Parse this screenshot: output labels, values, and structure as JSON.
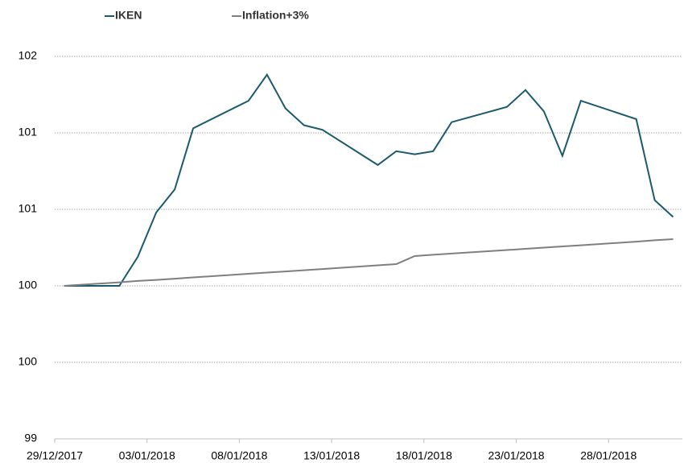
{
  "chart_data": {
    "type": "line",
    "x": [
      "29/12/2017",
      "01/01/2018",
      "02/01/2018",
      "03/01/2018",
      "04/01/2018",
      "05/01/2018",
      "08/01/2018",
      "09/01/2018",
      "10/01/2018",
      "11/01/2018",
      "12/01/2018",
      "15/01/2018",
      "16/01/2018",
      "17/01/2018",
      "18/01/2018",
      "19/01/2018",
      "22/01/2018",
      "23/01/2018",
      "24/01/2018",
      "25/01/2018",
      "26/01/2018",
      "29/01/2018",
      "30/01/2018",
      "31/01/2018"
    ],
    "series": [
      {
        "name": "IKEN",
        "color": "#1b5a6e",
        "values": [
          100,
          100,
          100.19,
          100.48,
          100.63,
          101.03,
          101.21,
          101.38,
          101.16,
          101.05,
          101.02,
          100.79,
          100.88,
          100.86,
          100.88,
          101.07,
          101.17,
          101.28,
          101.14,
          100.85,
          101.21,
          101.09,
          100.56,
          100.45
        ]
      },
      {
        "name": "Inflation+3%",
        "color": "#7f7f7f",
        "values": [
          100,
          100.023,
          100.032,
          100.039,
          100.047,
          100.055,
          100.079,
          100.087,
          100.094,
          100.102,
          100.11,
          100.134,
          100.142,
          100.195,
          100.203,
          100.211,
          100.234,
          100.242,
          100.25,
          100.258,
          100.265,
          100.289,
          100.298,
          100.305
        ]
      }
    ],
    "xlim": [
      "29/12/2017",
      "01/02/2018"
    ],
    "xticks": [
      "29/12/2017",
      "03/01/2018",
      "08/01/2018",
      "13/01/2018",
      "18/01/2018",
      "23/01/2018",
      "28/01/2018"
    ],
    "ylim": [
      99,
      101.5
    ],
    "yticks": [
      99,
      {
        "value": 99.5,
        "label": "100"
      },
      100,
      {
        "value": 100.5,
        "label": "101"
      },
      101,
      {
        "value": 101.5,
        "label": "102"
      }
    ],
    "grid": true,
    "legend": "top-left"
  }
}
